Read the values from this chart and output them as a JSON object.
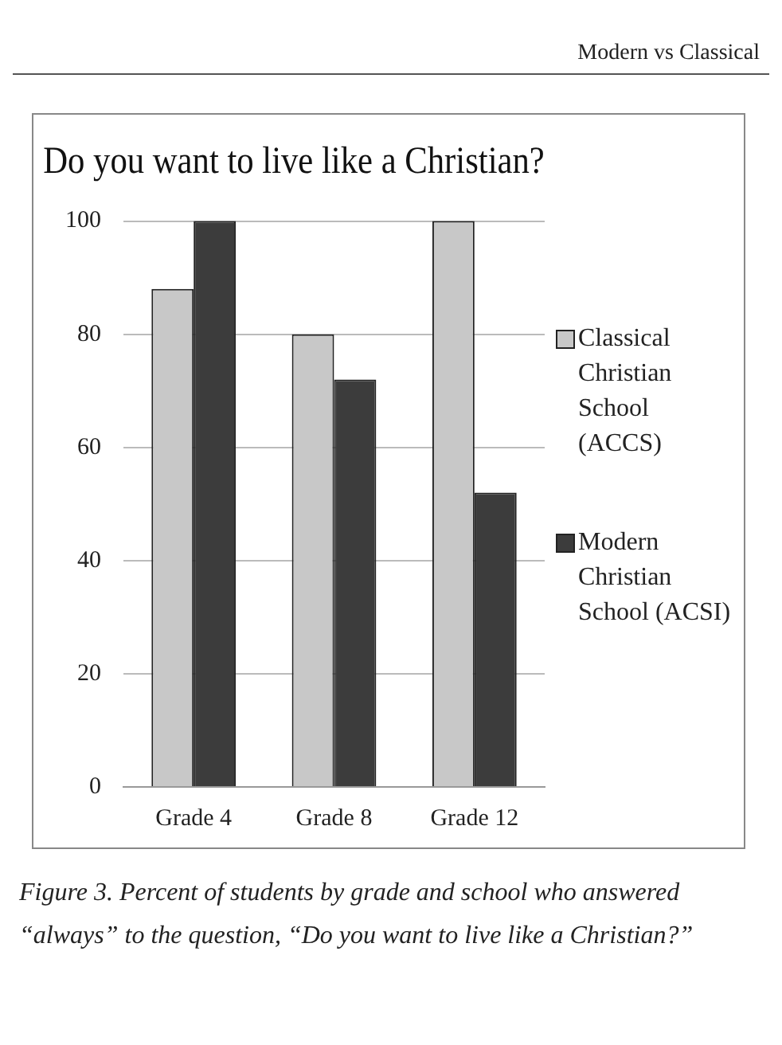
{
  "chart_data": {
    "type": "bar",
    "title": "Do you want to live like a Christian?",
    "categories": [
      "Grade 4",
      "Grade 8",
      "Grade 12"
    ],
    "series": [
      {
        "name": "Classical Christian School (ACCS)",
        "color": "#c8c8c8",
        "values": [
          88,
          80,
          100
        ]
      },
      {
        "name": "Modern Christian School (ACSI)",
        "color": "#3c3c3c",
        "values": [
          100,
          72,
          52
        ]
      }
    ],
    "ylim": [
      0,
      100
    ],
    "yticks": [
      0,
      20,
      40,
      60,
      80,
      100
    ],
    "grid": "y",
    "legend": "right",
    "annotations": [
      "Modern vs Classical",
      "Figure 3. Percent of students by grade and school who answered “always” to the question, “Do you want to live like a Christian?”"
    ]
  }
}
